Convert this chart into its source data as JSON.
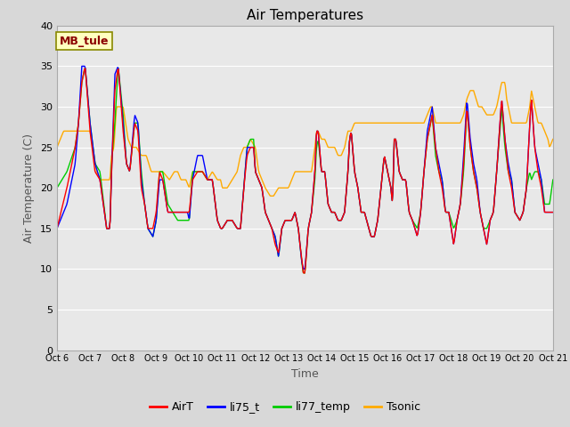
{
  "title": "Air Temperatures",
  "xlabel": "Time",
  "ylabel": "Air Temperature (C)",
  "annotation": "MB_tule",
  "ylim": [
    0,
    40
  ],
  "yticks": [
    0,
    5,
    10,
    15,
    20,
    25,
    30,
    35,
    40
  ],
  "xlim": [
    0,
    15
  ],
  "xtick_labels": [
    "Oct 6",
    "Oct 7",
    "Oct 8",
    "Oct 9",
    "Oct 10",
    "Oct 11",
    "Oct 12",
    "Oct 13",
    "Oct 14",
    "Oct 15",
    "Oct 16",
    "Oct 17",
    "Oct 18",
    "Oct 19",
    "Oct 20",
    "Oct 21"
  ],
  "series": {
    "AirT": {
      "color": "#ff0000",
      "linewidth": 1.0
    },
    "li75_t": {
      "color": "#0000ff",
      "linewidth": 1.0
    },
    "li77_temp": {
      "color": "#00cc00",
      "linewidth": 1.0
    },
    "Tsonic": {
      "color": "#ffaa00",
      "linewidth": 1.0
    }
  },
  "fig_bg_color": "#e8e8e8",
  "plot_bg_color": "#e8e8e8",
  "grid_color": "#ffffff",
  "title_fontsize": 11,
  "axis_label_fontsize": 9,
  "tick_fontsize": 8,
  "legend_fontsize": 9
}
